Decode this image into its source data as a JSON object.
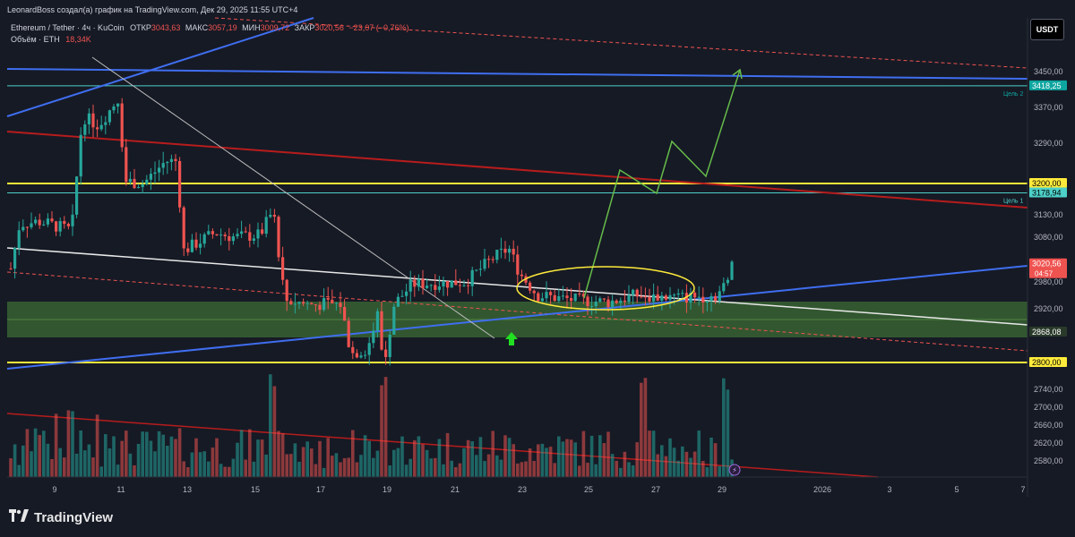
{
  "header": {
    "attribution": "LeonardBoss создал(а) график на TradingView.com, Дек 29, 2025 11:55 UTC+4",
    "symbol": "Ethereum / Tether · 4ч · KuCoin",
    "open_label": "ОТКР",
    "open_value": "3043,63",
    "high_label": "МАКС",
    "high_value": "3057,19",
    "low_label": "МИН",
    "low_value": "3009,72",
    "close_label": "ЗАКР",
    "close_value": "3020,56",
    "change": "−23,07 (−0,76%)",
    "volume_label": "Объём · ETH",
    "volume_value": "18,34K"
  },
  "currency": "USDT",
  "brand": "TradingView",
  "colors": {
    "up": "#26a69a",
    "down": "#ef5350",
    "background": "#161a25",
    "yellow": "#ffeb3b",
    "blue": "#3f6ef0",
    "cyan": "#4dd0c8",
    "green_path": "#66bb4a",
    "zone": "#4b8a3b"
  },
  "chart_data": {
    "type": "candlestick",
    "instrument": "Ethereum / Tether · 4ч · KuCoin",
    "price_axis": {
      "ticks": [
        "3450,00",
        "3370,00",
        "3290,00",
        "3130,00",
        "3080,00",
        "2980,00",
        "2920,00",
        "2740,00",
        "2700,00",
        "2660,00",
        "2620,00",
        "2580,00"
      ],
      "range": [
        2545,
        3510
      ]
    },
    "time_axis": {
      "ticks": [
        "9",
        "11",
        "13",
        "15",
        "17",
        "19",
        "21",
        "23",
        "25",
        "27",
        "29",
        "2026",
        "3",
        "5",
        "7"
      ]
    },
    "price_labels": [
      {
        "value": 3418.25,
        "text": "3418,25",
        "bg": "#0ea5a0",
        "note": "Цель 2"
      },
      {
        "value": 3200.0,
        "text": "3200,00",
        "bg": "#ffeb3b",
        "note": ""
      },
      {
        "value": 3178.94,
        "text": "3178,94",
        "bg": "#4dd0c8",
        "note": "Цель 1"
      },
      {
        "value": 3020.56,
        "text": "3020,56",
        "bg": "#ef5350",
        "note": ""
      },
      {
        "value": 2868.08,
        "text": "2868,08",
        "bg": "#2a3a2a",
        "note": ""
      },
      {
        "value": 2800.0,
        "text": "2800,00",
        "bg": "#ffeb3b",
        "note": ""
      }
    ],
    "countdown": "04:57",
    "horizontal_lines": [
      {
        "price": 3418.25,
        "color": "#4dd0c8",
        "width": 1
      },
      {
        "price": 3200.0,
        "color": "#ffeb3b",
        "width": 2
      },
      {
        "price": 3178.94,
        "color": "#4dd0c8",
        "width": 1
      },
      {
        "price": 2800.0,
        "color": "#ffeb3b",
        "width": 2
      }
    ],
    "zone": {
      "from": 2868.08,
      "to": 2945,
      "color": "#4b8a3b"
    },
    "candles": []
  }
}
